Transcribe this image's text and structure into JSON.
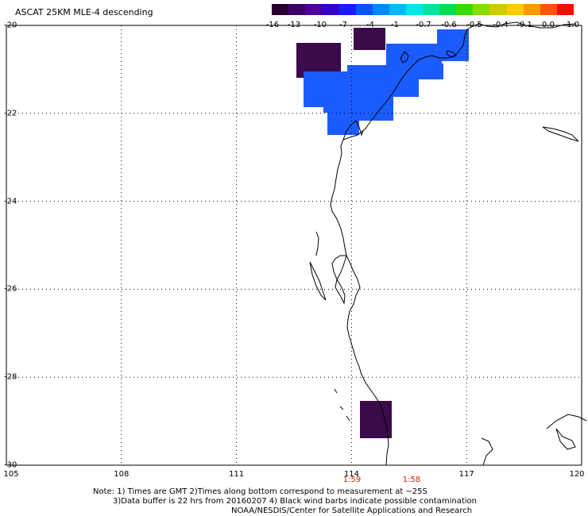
{
  "title": "ASCAT 25KM MLE-4 descending",
  "colorbar": {
    "colors": [
      "#2a0033",
      "#3d0066",
      "#4d00a0",
      "#3300cc",
      "#1a1aff",
      "#0055ff",
      "#0088ff",
      "#00b8ff",
      "#00e6e6",
      "#00e6a0",
      "#00dd55",
      "#33dd00",
      "#88dd00",
      "#cccc00",
      "#ffcc00",
      "#ff9900",
      "#ff5500",
      "#ee1100"
    ],
    "ticks": [
      "-16",
      "-13",
      "-10",
      "-7",
      "-4",
      "-1",
      "-0.7",
      "-0.6",
      "-0.5",
      "-0.4",
      "-0.1",
      "0.0",
      "1.0"
    ]
  },
  "map": {
    "lon_range": [
      105,
      120
    ],
    "lat_range": [
      -30,
      -20
    ],
    "lat_labels": [
      "-20",
      "-22",
      "-24",
      "-26",
      "-28",
      "-30"
    ],
    "lon_labels": [
      "105",
      "108",
      "111",
      "114",
      "117",
      "120"
    ]
  },
  "times": [
    "1:59",
    "1:58"
  ],
  "notes": [
    "Note: 1) Times are GMT 2)Times along bottom correspond to measurement at ~25S",
    "3)Data buffer is 22 hrs from 20160207 4) Black wind barbs indicate possible contamination",
    "NOAA/NESDIS/Center for Satellite Applications and Research"
  ]
}
